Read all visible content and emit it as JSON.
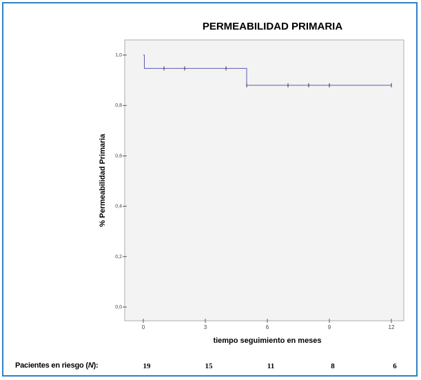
{
  "chart_data": {
    "type": "line",
    "subtype": "kaplan-meier-step",
    "title": "PERMEABILIDAD PRIMARIA",
    "xlabel": "tiempo seguimiento en meses",
    "ylabel": "% Permeabilidad Primaria",
    "xlim": [
      0,
      12
    ],
    "ylim": [
      0,
      1
    ],
    "x_ticks": [
      "0",
      "3",
      "6",
      "9",
      "12"
    ],
    "y_ticks": [
      "0,0",
      "0,2",
      "0,4",
      "0,6",
      "0,8",
      "1,0"
    ],
    "series": [
      {
        "color": "#5b5bb0",
        "steps": [
          {
            "x": 0,
            "y": 1.0
          },
          {
            "x": 0.05,
            "y": 0.947
          },
          {
            "x": 5,
            "y": 0.947
          },
          {
            "x": 5,
            "y": 0.88
          },
          {
            "x": 12,
            "y": 0.88
          }
        ],
        "censored": [
          {
            "x": 1,
            "y": 0.947
          },
          {
            "x": 2,
            "y": 0.947
          },
          {
            "x": 4,
            "y": 0.947
          },
          {
            "x": 5,
            "y": 0.88
          },
          {
            "x": 7,
            "y": 0.88
          },
          {
            "x": 8,
            "y": 0.88
          },
          {
            "x": 9,
            "y": 0.88
          },
          {
            "x": 12,
            "y": 0.88
          }
        ]
      }
    ],
    "grid": false
  },
  "risk_table": {
    "label_prefix": "Pacientes en riesgo (",
    "label_n": "N",
    "label_suffix": "):",
    "times": [
      0,
      3,
      6,
      9,
      12
    ],
    "values": [
      "19",
      "15",
      "11",
      "8",
      "6"
    ]
  },
  "colors": {
    "frame": "#2f7fc4",
    "plot_bg": "#f3f3f3",
    "line": "#5b5bb0"
  }
}
